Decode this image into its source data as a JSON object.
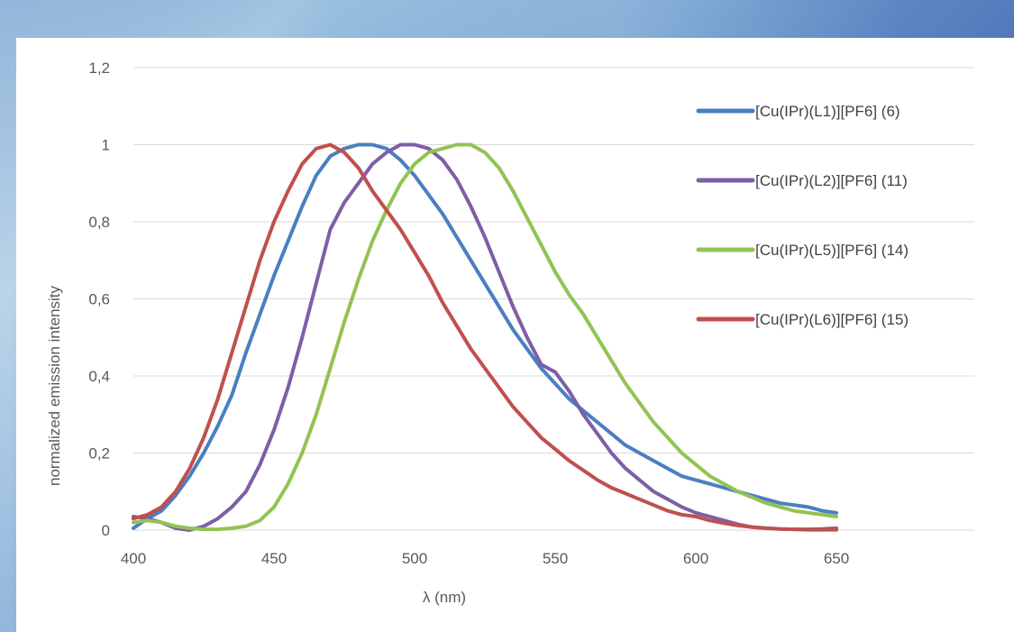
{
  "chart_data": {
    "type": "line",
    "title": "",
    "xlabel": "λ (nm)",
    "ylabel": "normalized emission intensity",
    "xlim": [
      400,
      650
    ],
    "ylim": [
      0,
      1.2
    ],
    "x_ticks": [
      400,
      450,
      500,
      550,
      600,
      650
    ],
    "y_ticks": [
      0,
      0.2,
      0.4,
      0.6,
      0.8,
      1,
      1.2
    ],
    "x_tick_labels": [
      "400",
      "450",
      "500",
      "550",
      "600",
      "650"
    ],
    "y_tick_labels": [
      "0",
      "0,2",
      "0,4",
      "0,6",
      "0,8",
      "1",
      "1,2"
    ],
    "grid": "horizontal",
    "legend_position": "right",
    "series": [
      {
        "name": "[Cu(IPr)(L1)][PF6] (6)",
        "color": "#4a7fc1",
        "x": [
          400,
          405,
          410,
          415,
          420,
          425,
          430,
          435,
          440,
          445,
          450,
          455,
          460,
          465,
          470,
          475,
          480,
          485,
          490,
          495,
          500,
          505,
          510,
          515,
          520,
          525,
          530,
          535,
          540,
          545,
          550,
          555,
          560,
          565,
          570,
          575,
          580,
          585,
          590,
          595,
          600,
          605,
          610,
          615,
          620,
          625,
          630,
          635,
          640,
          645,
          650
        ],
        "y": [
          0.005,
          0.03,
          0.05,
          0.09,
          0.14,
          0.2,
          0.27,
          0.35,
          0.46,
          0.56,
          0.66,
          0.75,
          0.84,
          0.92,
          0.97,
          0.99,
          1.0,
          1.0,
          0.99,
          0.96,
          0.92,
          0.87,
          0.82,
          0.76,
          0.7,
          0.64,
          0.58,
          0.52,
          0.47,
          0.42,
          0.38,
          0.34,
          0.31,
          0.28,
          0.25,
          0.22,
          0.2,
          0.18,
          0.16,
          0.14,
          0.13,
          0.12,
          0.11,
          0.1,
          0.09,
          0.08,
          0.07,
          0.065,
          0.06,
          0.05,
          0.045
        ]
      },
      {
        "name": "[Cu(IPr)(L2)][PF6] (11)",
        "color": "#7e5ea6",
        "x": [
          400,
          405,
          410,
          415,
          420,
          425,
          430,
          435,
          440,
          445,
          450,
          455,
          460,
          465,
          470,
          475,
          480,
          485,
          490,
          495,
          500,
          505,
          510,
          515,
          520,
          525,
          530,
          535,
          540,
          545,
          550,
          555,
          560,
          565,
          570,
          575,
          580,
          585,
          590,
          595,
          600,
          605,
          610,
          615,
          620,
          625,
          630,
          635,
          640,
          645,
          650
        ],
        "y": [
          0.035,
          0.03,
          0.02,
          0.005,
          0.0,
          0.01,
          0.03,
          0.06,
          0.1,
          0.17,
          0.26,
          0.37,
          0.5,
          0.64,
          0.78,
          0.85,
          0.9,
          0.95,
          0.98,
          1.0,
          1.0,
          0.99,
          0.96,
          0.91,
          0.84,
          0.76,
          0.67,
          0.58,
          0.5,
          0.43,
          0.41,
          0.36,
          0.3,
          0.25,
          0.2,
          0.16,
          0.13,
          0.1,
          0.08,
          0.06,
          0.045,
          0.035,
          0.025,
          0.015,
          0.008,
          0.005,
          0.003,
          0.002,
          0.002,
          0.003,
          0.005
        ]
      },
      {
        "name": "[Cu(IPr)(L5)][PF6] (14)",
        "color": "#92c353",
        "x": [
          400,
          405,
          410,
          415,
          420,
          425,
          430,
          435,
          440,
          445,
          450,
          455,
          460,
          465,
          470,
          475,
          480,
          485,
          490,
          495,
          500,
          505,
          510,
          515,
          520,
          525,
          530,
          535,
          540,
          545,
          550,
          555,
          560,
          565,
          570,
          575,
          580,
          585,
          590,
          595,
          600,
          605,
          610,
          615,
          620,
          625,
          630,
          635,
          640,
          645,
          650
        ],
        "y": [
          0.02,
          0.025,
          0.02,
          0.01,
          0.005,
          0.002,
          0.002,
          0.005,
          0.01,
          0.025,
          0.06,
          0.12,
          0.2,
          0.3,
          0.42,
          0.54,
          0.65,
          0.75,
          0.83,
          0.9,
          0.95,
          0.98,
          0.99,
          1.0,
          1.0,
          0.98,
          0.94,
          0.88,
          0.81,
          0.74,
          0.67,
          0.61,
          0.56,
          0.5,
          0.44,
          0.38,
          0.33,
          0.28,
          0.24,
          0.2,
          0.17,
          0.14,
          0.12,
          0.1,
          0.085,
          0.07,
          0.06,
          0.05,
          0.045,
          0.04,
          0.035
        ]
      },
      {
        "name": "[Cu(IPr)(L6)][PF6] (15)",
        "color": "#c0504d",
        "x": [
          400,
          405,
          410,
          415,
          420,
          425,
          430,
          435,
          440,
          445,
          450,
          455,
          460,
          465,
          470,
          475,
          480,
          485,
          490,
          495,
          500,
          505,
          510,
          515,
          520,
          525,
          530,
          535,
          540,
          545,
          550,
          555,
          560,
          565,
          570,
          575,
          580,
          585,
          590,
          595,
          600,
          605,
          610,
          615,
          620,
          625,
          630,
          635,
          640,
          645,
          650
        ],
        "y": [
          0.03,
          0.04,
          0.06,
          0.1,
          0.16,
          0.24,
          0.34,
          0.46,
          0.58,
          0.7,
          0.8,
          0.88,
          0.95,
          0.99,
          1.0,
          0.98,
          0.94,
          0.88,
          0.83,
          0.78,
          0.72,
          0.66,
          0.59,
          0.53,
          0.47,
          0.42,
          0.37,
          0.32,
          0.28,
          0.24,
          0.21,
          0.18,
          0.155,
          0.13,
          0.11,
          0.095,
          0.08,
          0.065,
          0.05,
          0.04,
          0.035,
          0.025,
          0.018,
          0.012,
          0.008,
          0.005,
          0.003,
          0.002,
          0.001,
          0.001,
          0.001
        ]
      }
    ]
  }
}
